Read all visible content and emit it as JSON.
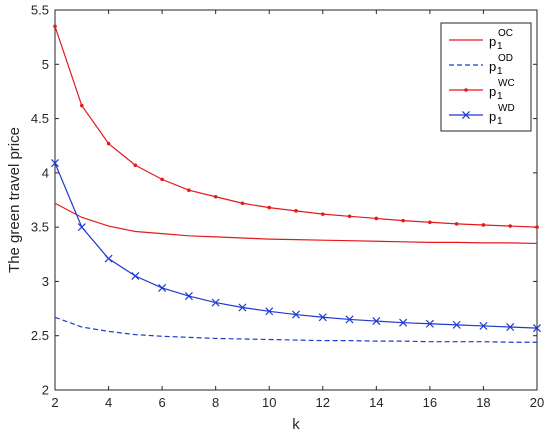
{
  "chart_data": {
    "type": "line",
    "title": "",
    "xlabel": "k",
    "ylabel": "The green travel price",
    "xlim": [
      2,
      20
    ],
    "ylim": [
      2,
      5.5
    ],
    "xticks": [
      "2",
      "4",
      "6",
      "8",
      "10",
      "12",
      "14",
      "16",
      "18",
      "20"
    ],
    "yticks": [
      "2",
      "2.5",
      "3",
      "3.5",
      "4",
      "4.5",
      "5",
      "5.5"
    ],
    "grid": false,
    "legend_position": "top-right",
    "x": [
      2,
      3,
      4,
      5,
      6,
      7,
      8,
      9,
      10,
      11,
      12,
      13,
      14,
      15,
      16,
      17,
      18,
      19,
      20
    ],
    "series": [
      {
        "name": "p",
        "sub": "1",
        "sup": "OC",
        "color": "#e31a1c",
        "style": "solid",
        "marker": "none",
        "values": [
          3.72,
          3.59,
          3.51,
          3.46,
          3.44,
          3.42,
          3.41,
          3.4,
          3.39,
          3.385,
          3.38,
          3.375,
          3.37,
          3.365,
          3.36,
          3.36,
          3.355,
          3.355,
          3.35
        ]
      },
      {
        "name": "p",
        "sub": "1",
        "sup": "OD",
        "color": "#1f3bd1",
        "style": "dashed",
        "marker": "none",
        "values": [
          2.67,
          2.58,
          2.54,
          2.51,
          2.495,
          2.485,
          2.475,
          2.47,
          2.465,
          2.46,
          2.455,
          2.455,
          2.45,
          2.45,
          2.445,
          2.445,
          2.445,
          2.44,
          2.44
        ]
      },
      {
        "name": "p",
        "sub": "1",
        "sup": "WC",
        "color": "#e31a1c",
        "style": "solid",
        "marker": "dot",
        "values": [
          5.35,
          4.62,
          4.27,
          4.07,
          3.94,
          3.84,
          3.78,
          3.72,
          3.68,
          3.65,
          3.62,
          3.6,
          3.58,
          3.56,
          3.545,
          3.53,
          3.52,
          3.51,
          3.5
        ]
      },
      {
        "name": "p",
        "sub": "1",
        "sup": "WD",
        "color": "#1f3bd1",
        "style": "solid",
        "marker": "x",
        "values": [
          4.09,
          3.5,
          3.21,
          3.05,
          2.94,
          2.865,
          2.805,
          2.76,
          2.725,
          2.695,
          2.67,
          2.65,
          2.635,
          2.62,
          2.61,
          2.6,
          2.59,
          2.58,
          2.57
        ]
      }
    ]
  }
}
